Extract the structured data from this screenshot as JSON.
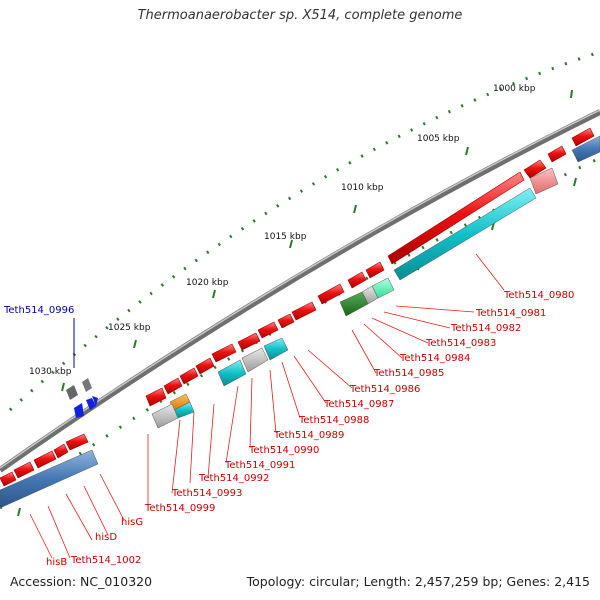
{
  "title": "Thermoanaerobacter sp. X514, complete genome",
  "footer": {
    "accession": "Accession: NC_010320",
    "topology": "Topology: circular; Length: 2,457,259 bp; Genes: 2,415"
  },
  "colors": {
    "backbone": "#8a8a8a",
    "gene_label": "#cc0000",
    "highlight_label": "#0000aa",
    "ticks": "#2a7a2a",
    "red": "#ee1111",
    "cyan": "#11bcc4",
    "blue": "#4477b4",
    "gray": "#bbbbbb",
    "green": "#228822",
    "pink": "#f08080",
    "orange": "#ee8800"
  },
  "scale_ticks": [
    {
      "label": "1000 kbp"
    },
    {
      "label": "1005 kbp"
    },
    {
      "label": "1010 kbp"
    },
    {
      "label": "1015 kbp"
    },
    {
      "label": "1020 kbp"
    },
    {
      "label": "1025 kbp"
    },
    {
      "label": "1030 kbp"
    }
  ],
  "gene_labels": [
    {
      "text": "Teth514_0980"
    },
    {
      "text": "Teth514_0981"
    },
    {
      "text": "Teth514_0982"
    },
    {
      "text": "Teth514_0983"
    },
    {
      "text": "Teth514_0984"
    },
    {
      "text": "Teth514_0985"
    },
    {
      "text": "Teth514_0986"
    },
    {
      "text": "Teth514_0987"
    },
    {
      "text": "Teth514_0988"
    },
    {
      "text": "Teth514_0989"
    },
    {
      "text": "Teth514_0990"
    },
    {
      "text": "Teth514_0991"
    },
    {
      "text": "Teth514_0992"
    },
    {
      "text": "Teth514_0993"
    },
    {
      "text": "Teth514_0999"
    },
    {
      "text": "hisG"
    },
    {
      "text": "hisD"
    },
    {
      "text": "Teth514_1002"
    },
    {
      "text": "hisB"
    }
  ],
  "highlight_label": {
    "text": "Teth514_0996"
  }
}
